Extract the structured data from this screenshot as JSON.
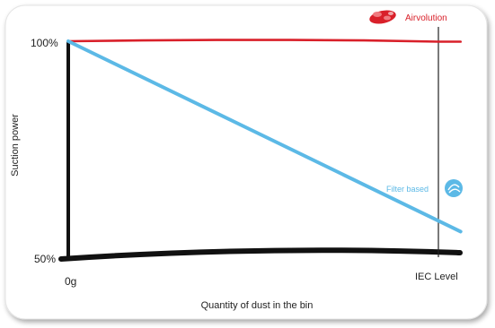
{
  "chart_data": {
    "type": "line",
    "xlabel": "Quantity of dust in the bin",
    "ylabel": "Suction power",
    "x_ticks": [
      {
        "label": "0g",
        "value": 0
      },
      {
        "label": "IEC Level",
        "value": 1
      }
    ],
    "y_ticks": [
      {
        "label": "100%",
        "value": 100
      },
      {
        "label": "50%",
        "value": 50
      }
    ],
    "xlim": [
      0,
      1.06
    ],
    "ylim": [
      50,
      100
    ],
    "series": [
      {
        "name": "Airvolution",
        "color": "#d9202a",
        "icon": "airvolution-logo-icon",
        "x": [
          0,
          0.2,
          0.4,
          0.6,
          0.8,
          1.0,
          1.06
        ],
        "y": [
          100,
          100.2,
          100.3,
          100.3,
          100.2,
          99.9,
          99.9
        ]
      },
      {
        "name": "Filter based",
        "color": "#5cb9e6",
        "icon": "filter-logo-icon",
        "x": [
          0,
          1.06
        ],
        "y": [
          100,
          55
        ]
      }
    ],
    "baseline_color": "#111111",
    "grid": false,
    "legend": "inline labels at right end of lines"
  }
}
